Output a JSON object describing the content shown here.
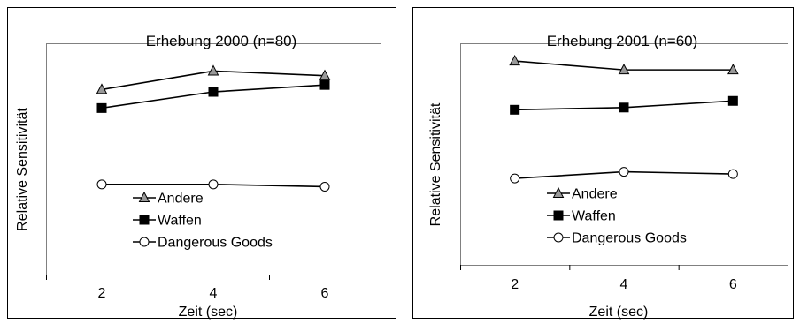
{
  "chart_data": [
    {
      "type": "line",
      "title": "Erhebung 2000 (n=80)",
      "xlabel": "Zeit (sec)",
      "ylabel": "Relative Sensitivität",
      "categories": [
        "2",
        "4",
        "6"
      ],
      "ylim": [
        0,
        100
      ],
      "grid": false,
      "legend_position": "bottom-left",
      "series": [
        {
          "name": "Andere",
          "marker": "triangle",
          "fill": "#999999",
          "values": [
            80,
            88,
            86
          ]
        },
        {
          "name": "Waffen",
          "marker": "square",
          "fill": "#000000",
          "values": [
            72,
            79,
            82
          ]
        },
        {
          "name": "Dangerous Goods",
          "marker": "circle",
          "fill": "#ffffff",
          "values": [
            39,
            39,
            38
          ]
        }
      ]
    },
    {
      "type": "line",
      "title": "Erhebung 2001 (n=60)",
      "xlabel": "Zeit (sec)",
      "ylabel": "Relative Sensitivität",
      "categories": [
        "2",
        "4",
        "6"
      ],
      "ylim": [
        0,
        100
      ],
      "grid": false,
      "legend_position": "bottom-left",
      "series": [
        {
          "name": "Andere",
          "marker": "triangle",
          "fill": "#999999",
          "values": [
            92,
            88,
            88
          ]
        },
        {
          "name": "Waffen",
          "marker": "square",
          "fill": "#000000",
          "values": [
            70,
            71,
            74
          ]
        },
        {
          "name": "Dangerous Goods",
          "marker": "circle",
          "fill": "#ffffff",
          "values": [
            39,
            42,
            41
          ]
        }
      ]
    }
  ]
}
